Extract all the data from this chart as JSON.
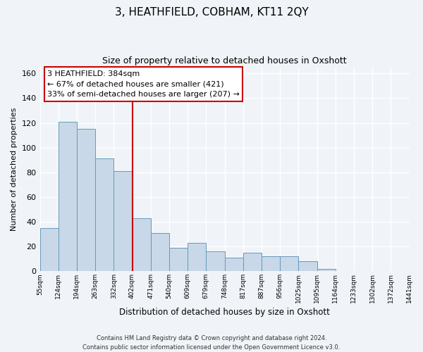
{
  "title_line1": "3, HEATHFIELD, COBHAM, KT11 2QY",
  "title_line2": "Size of property relative to detached houses in Oxshott",
  "xlabel": "Distribution of detached houses by size in Oxshott",
  "ylabel": "Number of detached properties",
  "bar_values": [
    35,
    121,
    115,
    91,
    81,
    43,
    31,
    19,
    23,
    16,
    11,
    15,
    12,
    12,
    8,
    2
  ],
  "bin_labels": [
    "55sqm",
    "124sqm",
    "194sqm",
    "263sqm",
    "332sqm",
    "402sqm",
    "471sqm",
    "540sqm",
    "609sqm",
    "679sqm",
    "748sqm",
    "817sqm",
    "887sqm",
    "956sqm",
    "1025sqm",
    "1095sqm",
    "1164sqm",
    "1233sqm",
    "1302sqm",
    "1372sqm",
    "1441sqm"
  ],
  "bar_color": "#c8d8e8",
  "bar_edge_color": "#6699bb",
  "vline_x_index": 5,
  "vline_color": "#cc0000",
  "annotation_title": "3 HEATHFIELD: 384sqm",
  "annotation_line1": "← 67% of detached houses are smaller (421)",
  "annotation_line2": "33% of semi-detached houses are larger (207) →",
  "ylim": [
    0,
    165
  ],
  "yticks": [
    0,
    20,
    40,
    60,
    80,
    100,
    120,
    140,
    160
  ],
  "footer_line1": "Contains HM Land Registry data © Crown copyright and database right 2024.",
  "footer_line2": "Contains public sector information licensed under the Open Government Licence v3.0.",
  "background_color": "#f0f4f8",
  "grid_color": "#ffffff",
  "n_total_bins": 21
}
